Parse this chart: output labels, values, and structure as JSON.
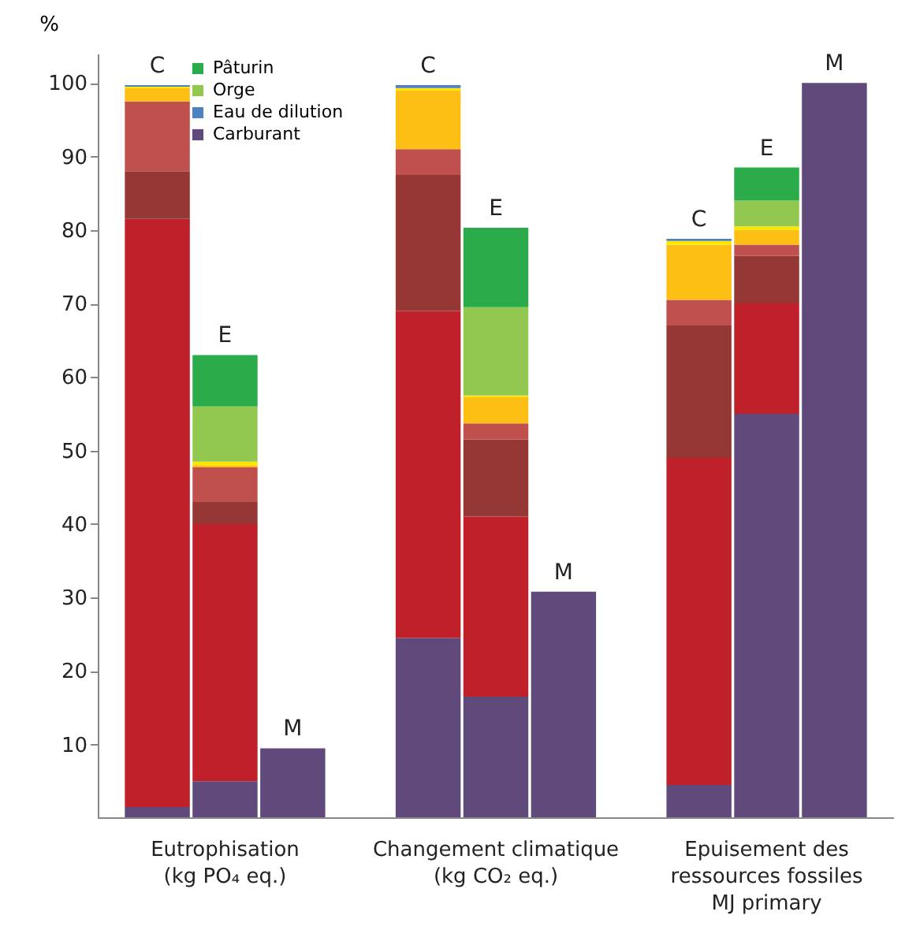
{
  "chart_data": {
    "type": "bar",
    "ylabel": "%",
    "stacked": true,
    "legend": "top left",
    "categories": [
      "C",
      "E",
      "M",
      null,
      "C",
      "E",
      "M",
      null,
      "C",
      "E",
      "M"
    ],
    "series": [
      {
        "name": "Carburant",
        "color": "#604a7b",
        "values": [
          1.5,
          5,
          9.5,
          null,
          24.5,
          16.5,
          30.8,
          null,
          4.5,
          55,
          100
        ]
      },
      {
        "color": "#c0202a",
        "values": [
          80,
          35,
          null,
          null,
          44.5,
          24.5,
          null,
          null,
          44.5,
          15,
          null
        ]
      },
      {
        "color": "#953735",
        "values": [
          6.5,
          3,
          null,
          null,
          18.5,
          10.5,
          null,
          null,
          18,
          6.5,
          null
        ]
      },
      {
        "color": "#c0504d",
        "values": [
          9.5,
          4.7,
          null,
          null,
          3.5,
          2.2,
          null,
          null,
          3.5,
          1.5,
          null
        ]
      },
      {
        "color": "#fdbf14",
        "values": [
          1.8,
          0.3,
          null,
          null,
          8,
          3.6,
          null,
          null,
          7.5,
          2,
          null
        ]
      },
      {
        "color": "#ffe600",
        "values": [
          0.2,
          0.5,
          null,
          null,
          0.3,
          0.2,
          null,
          null,
          0.5,
          0.5,
          null
        ]
      },
      {
        "name": "Eau de dilution",
        "color": "#4f81bd",
        "values": [
          0.2,
          null,
          null,
          null,
          0.4,
          null,
          null,
          null,
          0.3,
          null,
          null
        ]
      },
      {
        "name": "Orge",
        "color": "#92c84f",
        "values": [
          null,
          7.5,
          null,
          null,
          null,
          12,
          null,
          null,
          null,
          3.5,
          null
        ]
      },
      {
        "name": "Pâturin",
        "color": "#2bab4a",
        "values": [
          null,
          7,
          null,
          null,
          null,
          10.8,
          null,
          null,
          null,
          4.5,
          null
        ]
      }
    ],
    "ylim": [
      0,
      104
    ],
    "yticks": [
      10,
      20,
      30,
      40,
      50,
      60,
      70,
      80,
      90,
      100
    ],
    "annotations": [
      "Eutrophisation\n(kg PO₄ eq.)",
      "Changement climatique\n(kg CO₂ eq.)",
      "Epuisement des\nressources fossiles\nMJ primary"
    ]
  }
}
